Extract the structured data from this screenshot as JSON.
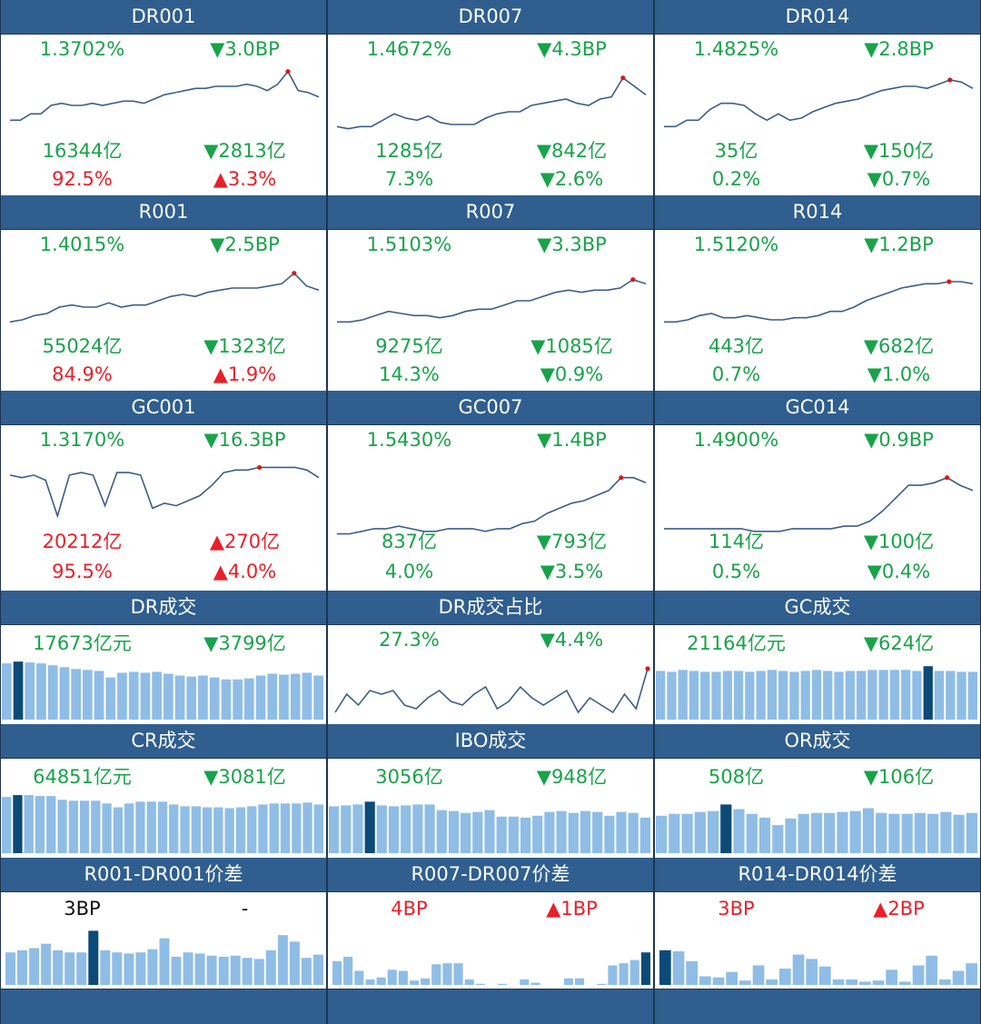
{
  "colors": {
    "header": "#2f5e8f",
    "up": "#e8202a",
    "down": "#18a34a",
    "bar": "#8fbde6",
    "bar_hi": "#0c4a78",
    "line": "#3b5f86",
    "marker": "#d51a1a"
  },
  "rate_rows": [
    {
      "cells": [
        {
          "title": "DR001",
          "rate": "1.3702%",
          "rate_chg": "▼3.0BP",
          "rate_chg_color": "green",
          "vol": "16344亿",
          "vol_color": "green",
          "vol_chg": "▼2813亿",
          "vol_chg_color": "green",
          "pct": "92.5%",
          "pct_color": "red",
          "pct_chg": "▲3.3%",
          "pct_chg_color": "red",
          "spark": [
            55,
            55,
            52,
            52,
            48,
            47,
            48,
            48,
            47,
            48,
            47,
            46,
            46,
            47,
            45,
            43,
            42,
            41,
            40,
            40,
            39,
            39,
            39,
            38,
            39,
            41,
            38,
            32,
            41,
            42,
            44
          ]
        },
        {
          "title": "DR007",
          "rate": "1.4672%",
          "rate_chg": "▼4.3BP",
          "rate_chg_color": "green",
          "vol": "1285亿",
          "vol_color": "green",
          "vol_chg": "▼842亿",
          "vol_chg_color": "green",
          "pct": "7.3%",
          "pct_color": "green",
          "pct_chg": "▼2.6%",
          "pct_chg_color": "green",
          "spark": [
            58,
            59,
            58,
            58,
            55,
            52,
            54,
            55,
            53,
            56,
            57,
            57,
            57,
            54,
            52,
            51,
            51,
            48,
            47,
            46,
            45,
            47,
            48,
            45,
            44,
            35,
            39,
            43
          ]
        },
        {
          "title": "DR014",
          "rate": "1.4825%",
          "rate_chg": "▼2.8BP",
          "rate_chg_color": "green",
          "vol": "35亿",
          "vol_color": "green",
          "vol_chg": "▼150亿",
          "vol_chg_color": "green",
          "pct": "0.2%",
          "pct_color": "green",
          "pct_chg": "▼0.7%",
          "pct_chg_color": "green",
          "spark": [
            58,
            58,
            55,
            55,
            50,
            47,
            47,
            48,
            52,
            55,
            52,
            55,
            54,
            51,
            49,
            47,
            46,
            45,
            43,
            41,
            40,
            39,
            39,
            40,
            38,
            36,
            37,
            40
          ]
        }
      ]
    },
    {
      "cells": [
        {
          "title": "R001",
          "rate": "1.4015%",
          "rate_chg": "▼2.5BP",
          "rate_chg_color": "green",
          "vol": "55024亿",
          "vol_color": "green",
          "vol_chg": "▼1323亿",
          "vol_chg_color": "green",
          "pct": "84.9%",
          "pct_color": "red",
          "pct_chg": "▲1.9%",
          "pct_chg_color": "red",
          "spark": [
            58,
            57,
            55,
            54,
            51,
            50,
            51,
            51,
            49,
            51,
            50,
            50,
            48,
            46,
            45,
            46,
            44,
            43,
            42,
            42,
            42,
            41,
            40,
            35,
            41,
            43
          ]
        },
        {
          "title": "R007",
          "rate": "1.5103%",
          "rate_chg": "▼3.3BP",
          "rate_chg_color": "green",
          "vol": "9275亿",
          "vol_color": "green",
          "vol_chg": "▼1085亿",
          "vol_chg_color": "green",
          "pct": "14.3%",
          "pct_color": "green",
          "pct_chg": "▼0.9%",
          "pct_chg_color": "green",
          "spark": [
            58,
            58,
            57,
            55,
            53,
            54,
            55,
            55,
            56,
            55,
            53,
            52,
            52,
            50,
            48,
            48,
            46,
            44,
            43,
            44,
            43,
            43,
            42,
            38,
            40
          ]
        },
        {
          "title": "R014",
          "rate": "1.5120%",
          "rate_chg": "▼1.2BP",
          "rate_chg_color": "green",
          "vol": "443亿",
          "vol_color": "green",
          "vol_chg": "▼682亿",
          "vol_chg_color": "green",
          "pct": "0.7%",
          "pct_color": "green",
          "pct_chg": "▼1.0%",
          "pct_chg_color": "green",
          "spark": [
            58,
            58,
            57,
            55,
            54,
            56,
            56,
            55,
            56,
            57,
            57,
            56,
            56,
            55,
            53,
            53,
            51,
            48,
            46,
            44,
            42,
            41,
            40,
            40,
            39,
            39,
            40
          ]
        }
      ]
    },
    {
      "cells": [
        {
          "title": "GC001",
          "rate": "1.3170%",
          "rate_chg": "▼16.3BP",
          "rate_chg_color": "green",
          "vol": "20212亿",
          "vol_color": "red",
          "vol_chg": "▲270亿",
          "vol_chg_color": "red",
          "pct": "95.5%",
          "pct_color": "red",
          "pct_chg": "▲4.0%",
          "pct_chg_color": "red",
          "spark": [
            34,
            35,
            34,
            36,
            50,
            34,
            33,
            34,
            46,
            33,
            33,
            34,
            47,
            45,
            46,
            44,
            42,
            38,
            33,
            32,
            32,
            31,
            31,
            31,
            31,
            32,
            35
          ]
        },
        {
          "title": "GC007",
          "rate": "1.5430%",
          "rate_chg": "▼1.4BP",
          "rate_chg_color": "green",
          "vol": "837亿",
          "vol_color": "green",
          "vol_chg": "▼793亿",
          "vol_chg_color": "green",
          "pct": "4.0%",
          "pct_color": "green",
          "pct_chg": "▼3.5%",
          "pct_chg_color": "green",
          "spark": [
            57,
            57,
            56,
            55,
            55,
            54,
            55,
            56,
            56,
            55,
            55,
            55,
            56,
            55,
            55,
            53,
            52,
            49,
            47,
            45,
            44,
            42,
            40,
            35,
            35,
            37
          ]
        },
        {
          "title": "GC014",
          "rate": "1.4900%",
          "rate_chg": "▼0.9BP",
          "rate_chg_color": "green",
          "vol": "114亿",
          "vol_color": "green",
          "vol_chg": "▼100亿",
          "vol_chg_color": "green",
          "pct": "0.5%",
          "pct_color": "green",
          "pct_chg": "▼0.4%",
          "pct_chg_color": "green",
          "spark": [
            55,
            55,
            55,
            55,
            55,
            55,
            55,
            56,
            56,
            56,
            55,
            55,
            55,
            55,
            54,
            54,
            52,
            48,
            43,
            38,
            38,
            37,
            35,
            38,
            40
          ]
        }
      ]
    }
  ],
  "volume_rows": [
    {
      "cells": [
        {
          "title": "DR成交",
          "left": "17673亿元",
          "left_color": "green",
          "right": "▼3799亿",
          "right_color": "green",
          "type": "bar",
          "highlight": 1,
          "values": [
            60,
            62,
            61,
            60,
            58,
            56,
            54,
            53,
            52,
            45,
            50,
            51,
            50,
            51,
            49,
            47,
            46,
            47,
            45,
            43,
            43,
            44,
            47,
            49,
            48,
            49,
            50,
            47
          ]
        },
        {
          "title": "DR成交占比",
          "left": "27.3%",
          "left_color": "green",
          "right": "▼4.4%",
          "right_color": "green",
          "type": "line",
          "values": [
            50,
            45,
            48,
            44,
            45,
            44,
            48,
            49,
            46,
            44,
            47,
            48,
            45,
            43,
            49,
            47,
            43,
            46,
            48,
            46,
            44,
            50,
            46,
            48,
            50,
            45,
            49,
            38
          ]
        },
        {
          "title": "GC成交",
          "left": "21164亿元",
          "left_color": "green",
          "right": "▼624亿",
          "right_color": "green",
          "type": "bar",
          "highlight": 24,
          "values": [
            52,
            51,
            53,
            52,
            51,
            51,
            52,
            52,
            51,
            52,
            53,
            52,
            51,
            52,
            53,
            52,
            51,
            52,
            52,
            53,
            53,
            53,
            53,
            52,
            57,
            52,
            52,
            51,
            51
          ]
        }
      ]
    },
    {
      "cells": [
        {
          "title": "CR成交",
          "left": "64851亿元",
          "left_color": "green",
          "right": "▼3081亿",
          "right_color": "green",
          "type": "bar",
          "highlight": 1,
          "values": [
            60,
            62,
            62,
            61,
            61,
            57,
            56,
            56,
            56,
            53,
            49,
            53,
            55,
            55,
            55,
            52,
            50,
            50,
            49,
            49,
            48,
            49,
            50,
            52,
            53,
            53,
            53,
            54,
            52
          ]
        },
        {
          "title": "IBO成交",
          "left": "3056亿",
          "left_color": "green",
          "right": "▼948亿",
          "right_color": "green",
          "type": "bar",
          "highlight": 3,
          "values": [
            50,
            51,
            52,
            55,
            51,
            50,
            51,
            52,
            52,
            46,
            45,
            43,
            44,
            46,
            39,
            39,
            38,
            40,
            44,
            45,
            43,
            45,
            44,
            40,
            44,
            43,
            38
          ]
        },
        {
          "title": "OR成交",
          "left": "508亿",
          "left_color": "green",
          "right": "▼106亿",
          "right_color": "green",
          "type": "bar",
          "highlight": 5,
          "values": [
            40,
            42,
            42,
            44,
            45,
            52,
            47,
            42,
            38,
            30,
            37,
            42,
            43,
            43,
            44,
            45,
            48,
            43,
            42,
            42,
            43,
            42,
            44,
            41,
            43
          ]
        }
      ]
    }
  ],
  "spread_row": {
    "cells": [
      {
        "title": "R001-DR001价差",
        "left": "3BP",
        "left_color": "black",
        "right": "-",
        "right_color": "black",
        "highlight": 7,
        "values": [
          3.0,
          3.2,
          3.4,
          3.8,
          3.2,
          3.0,
          3.0,
          5.0,
          3.2,
          3.0,
          2.9,
          3.0,
          3.3,
          4.3,
          2.6,
          3.0,
          2.9,
          2.7,
          2.6,
          2.7,
          2.5,
          2.4,
          3.2,
          4.6,
          4.0,
          2.5,
          2.8
        ]
      },
      {
        "title": "R007-DR007价差",
        "left": "4BP",
        "left_color": "red",
        "right": "▲1BP",
        "right_color": "red",
        "highlight": 28,
        "values": [
          2.2,
          2.6,
          1.3,
          0.5,
          0.7,
          1.4,
          1.3,
          0.4,
          0.6,
          1.9,
          2.0,
          2.0,
          0.5,
          0.1,
          0,
          0.1,
          0,
          0.5,
          0.2,
          0,
          0,
          0.6,
          0.6,
          0,
          0.1,
          1.8,
          2.0,
          2.3,
          3.0
        ]
      },
      {
        "title": "R014-DR014价差",
        "left": "3BP",
        "left_color": "red",
        "right": "▲2BP",
        "right_color": "red",
        "highlight": 0,
        "values": [
          3.2,
          3.1,
          2.2,
          0.8,
          0.7,
          1.2,
          0.4,
          1.8,
          0.5,
          1.5,
          2.8,
          2.4,
          1.7,
          0.5,
          0.5,
          0.3,
          0.4,
          1.4,
          0.3,
          1.8,
          2.7,
          0.5,
          1.3,
          2.0
        ]
      }
    ]
  }
}
